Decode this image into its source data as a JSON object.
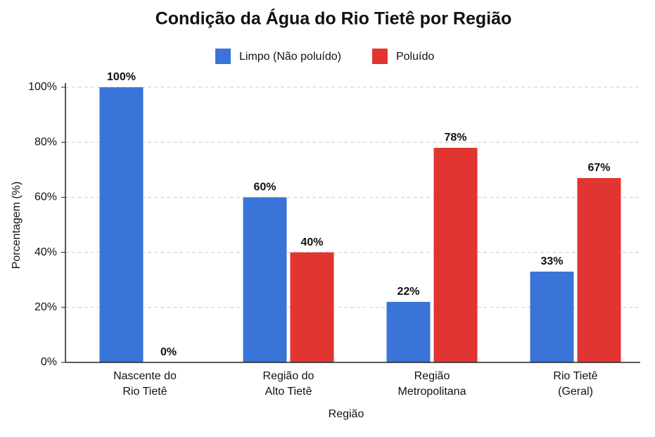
{
  "chart_data": {
    "type": "bar",
    "title": "Condição da Água do Rio Tietê por Região",
    "x_label": "Região",
    "y_label": "Porcentagem (%)",
    "categories": [
      [
        "Nascente do",
        "Rio Tietê"
      ],
      [
        "Região do",
        "Alto Tietê"
      ],
      [
        "Região",
        "Metropolitana"
      ],
      [
        "Rio Tietê",
        "(Geral)"
      ]
    ],
    "series": [
      {
        "name": "Limpo (Não poluído)",
        "color": "#3a74d8",
        "values": [
          100,
          60,
          22,
          33
        ],
        "value_labels": [
          "100%",
          "60%",
          "22%",
          "33%"
        ]
      },
      {
        "name": "Poluído",
        "color": "#e13532",
        "values": [
          0,
          40,
          78,
          67
        ],
        "value_labels": [
          "0%",
          "40%",
          "78%",
          "67%"
        ]
      }
    ],
    "ylim": [
      0,
      100
    ],
    "yticks": [
      {
        "value": 0,
        "label": "0%"
      },
      {
        "value": 20,
        "label": "20%"
      },
      {
        "value": 40,
        "label": "40%"
      },
      {
        "value": 60,
        "label": "60%"
      },
      {
        "value": 80,
        "label": "80%"
      },
      {
        "value": 100,
        "label": "100%"
      }
    ],
    "grid": true,
    "legend": "top"
  }
}
